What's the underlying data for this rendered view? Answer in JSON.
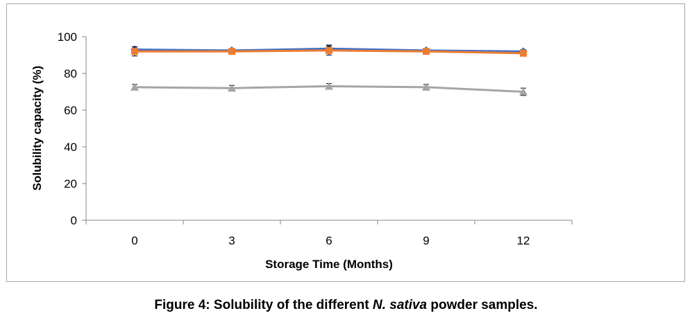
{
  "chart_data": {
    "type": "line",
    "title": "",
    "xlabel": "Storage Time (Months)",
    "ylabel": "Solubility capacity (%)",
    "categories": [
      "0",
      "3",
      "6",
      "9",
      "12"
    ],
    "ylim": [
      0,
      100
    ],
    "yticks": [
      "0",
      "20",
      "40",
      "60",
      "80",
      "100"
    ],
    "grid": false,
    "legend": "none",
    "series": [
      {
        "color": "#4472c4",
        "marker": "diamond",
        "values": [
          93.0,
          92.5,
          93.5,
          92.5,
          92.0
        ],
        "errors": [
          1.5,
          1.0,
          2.0,
          1.0,
          1.0
        ]
      },
      {
        "color": "#ed7d31",
        "marker": "square",
        "values": [
          92.0,
          92.0,
          92.5,
          92.0,
          91.0
        ],
        "errors": [
          2.5,
          1.0,
          2.5,
          1.0,
          1.0
        ]
      },
      {
        "color": "#a5a5a5",
        "marker": "triangle",
        "values": [
          72.5,
          72.0,
          73.0,
          72.5,
          70.0
        ],
        "errors": [
          1.5,
          1.5,
          1.5,
          1.5,
          2.0
        ]
      }
    ]
  },
  "caption": {
    "prefix": "Figure 4: Solubility of the different ",
    "italic": "N. sativa",
    "suffix": " powder samples."
  }
}
